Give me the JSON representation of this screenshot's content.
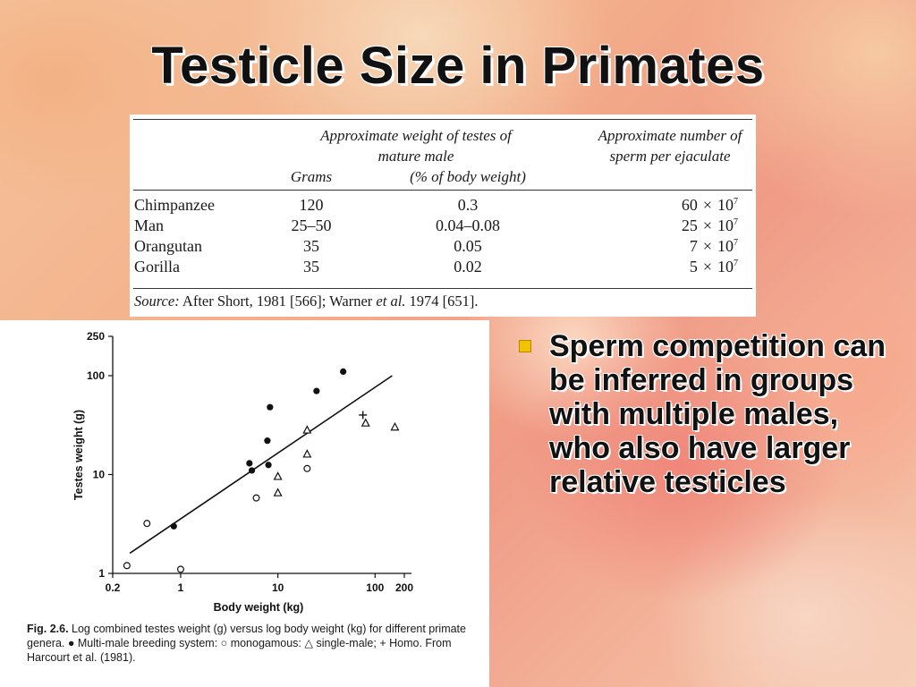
{
  "slide": {
    "title": "Testicle Size in Primates",
    "bullets": [
      "Sperm competition can be inferred in groups with multiple males, who also have larger relative testicles"
    ]
  },
  "table": {
    "header": {
      "weight_group": "Approximate weight of testes of mature male",
      "grams": "Grams",
      "percent": "(% of body weight)",
      "sperm": "Approximate number of sperm per ejaculate"
    },
    "rows": [
      {
        "species": "Chimpanzee",
        "grams": "120",
        "percent": "0.3",
        "sperm_mult": "60",
        "sperm_exp": "7"
      },
      {
        "species": "Man",
        "grams": "25–50",
        "percent": "0.04–0.08",
        "sperm_mult": "25",
        "sperm_exp": "7"
      },
      {
        "species": "Orangutan",
        "grams": "35",
        "percent": "0.05",
        "sperm_mult": "7",
        "sperm_exp": "7"
      },
      {
        "species": "Gorilla",
        "grams": "35",
        "percent": "0.02",
        "sperm_mult": "5",
        "sperm_exp": "7"
      }
    ],
    "times_sign": "×",
    "ten": "10",
    "source_label": "Source:",
    "source_text_1": " After Short, 1981 [566]; Warner ",
    "source_etal": "et al.",
    "source_text_2": " 1974 [651]."
  },
  "figure": {
    "caption_label": "Fig. 2.6.",
    "caption_text": " Log combined testes weight (g) versus log body weight (kg) for different primate genera. ● Multi-male breeding system: ○ monogamous: △ single-male; + Homo. From Harcourt et al. (1981)."
  },
  "chart_data": {
    "type": "scatter",
    "xscale": "log",
    "yscale": "log",
    "xlabel": "Body weight (kg)",
    "ylabel": "Testes weight (g)",
    "xlim": [
      0.2,
      200
    ],
    "ylim": [
      1,
      250
    ],
    "xticks": [
      {
        "value": 0.2,
        "label": "0.2"
      },
      {
        "value": 1,
        "label": "1"
      },
      {
        "value": 10,
        "label": "10"
      },
      {
        "value": 100,
        "label": "100"
      },
      {
        "value": 200,
        "label": "200"
      }
    ],
    "yticks": [
      {
        "value": 1,
        "label": "1"
      },
      {
        "value": 10,
        "label": "10"
      },
      {
        "value": 100,
        "label": "100"
      },
      {
        "value": 250,
        "label": "250"
      }
    ],
    "series": [
      {
        "marker": "filled-circle",
        "x": [
          0.85,
          5.1,
          5.4,
          7.8,
          8.0,
          8.3,
          25,
          47
        ],
        "y": [
          3,
          13,
          11,
          22,
          12.5,
          48,
          70,
          110
        ]
      },
      {
        "marker": "open-circle",
        "x": [
          0.28,
          0.45,
          1.0,
          6.0,
          20
        ],
        "y": [
          1.2,
          3.2,
          1.1,
          5.8,
          11.5
        ]
      },
      {
        "marker": "open-triangle",
        "x": [
          10,
          10,
          20,
          20,
          80,
          160
        ],
        "y": [
          6.5,
          9.5,
          16,
          28,
          33,
          30
        ]
      },
      {
        "marker": "plus",
        "x": [
          75
        ],
        "y": [
          40
        ]
      }
    ],
    "fit_line": {
      "x": [
        0.3,
        150
      ],
      "y": [
        1.6,
        100
      ]
    },
    "grid": false,
    "colors": {
      "marks": "#111111"
    }
  }
}
